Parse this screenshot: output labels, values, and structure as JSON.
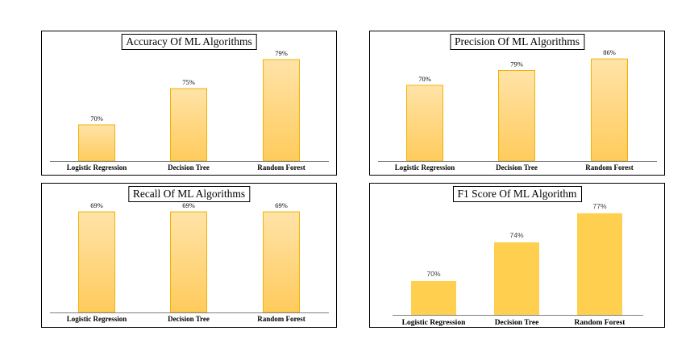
{
  "colors": {
    "bar_fill_top": "#FFE3A8",
    "bar_fill_bottom": "#FFCB5C",
    "bar_stroke": "#F2B203",
    "bar_solid": "#FFD04F",
    "axis": "#7F7F7F",
    "text": "#000000"
  },
  "chart_data": [
    {
      "type": "bar",
      "title": "Accuracy  Of  ML Algorithms",
      "categories": [
        "Logistic Regression",
        "Decision Tree",
        "Random Forest"
      ],
      "values": [
        70,
        75,
        79
      ],
      "labels": [
        "70%",
        "75%",
        "79%"
      ],
      "ylim": [
        65,
        80
      ],
      "style": "gradient"
    },
    {
      "type": "bar",
      "title": "Precision  Of  ML Algorithms",
      "categories": [
        "Logistic Regression",
        "Decision Tree",
        "Random Forest"
      ],
      "values": [
        70,
        79,
        86
      ],
      "labels": [
        "70%",
        "79%",
        "86%"
      ],
      "ylim": [
        24,
        90
      ],
      "style": "gradient"
    },
    {
      "type": "bar",
      "title": "Recall  Of  ML Algorithms",
      "categories": [
        "Logistic Regression",
        "Decision Tree",
        "Random Forest"
      ],
      "values": [
        69,
        69,
        69
      ],
      "labels": [
        "69%",
        "69%",
        "69%"
      ],
      "ylim": [
        0,
        74
      ],
      "style": "gradient"
    },
    {
      "type": "bar",
      "title": "F1 Score  Of  ML Algorithm",
      "categories": [
        "Logistic Regression",
        "Decision Tree",
        "Random Forest"
      ],
      "values": [
        70,
        74,
        77
      ],
      "labels": [
        "70%",
        "74%",
        "77%"
      ],
      "ylim": [
        66.5,
        77.9
      ],
      "style": "solid"
    }
  ]
}
